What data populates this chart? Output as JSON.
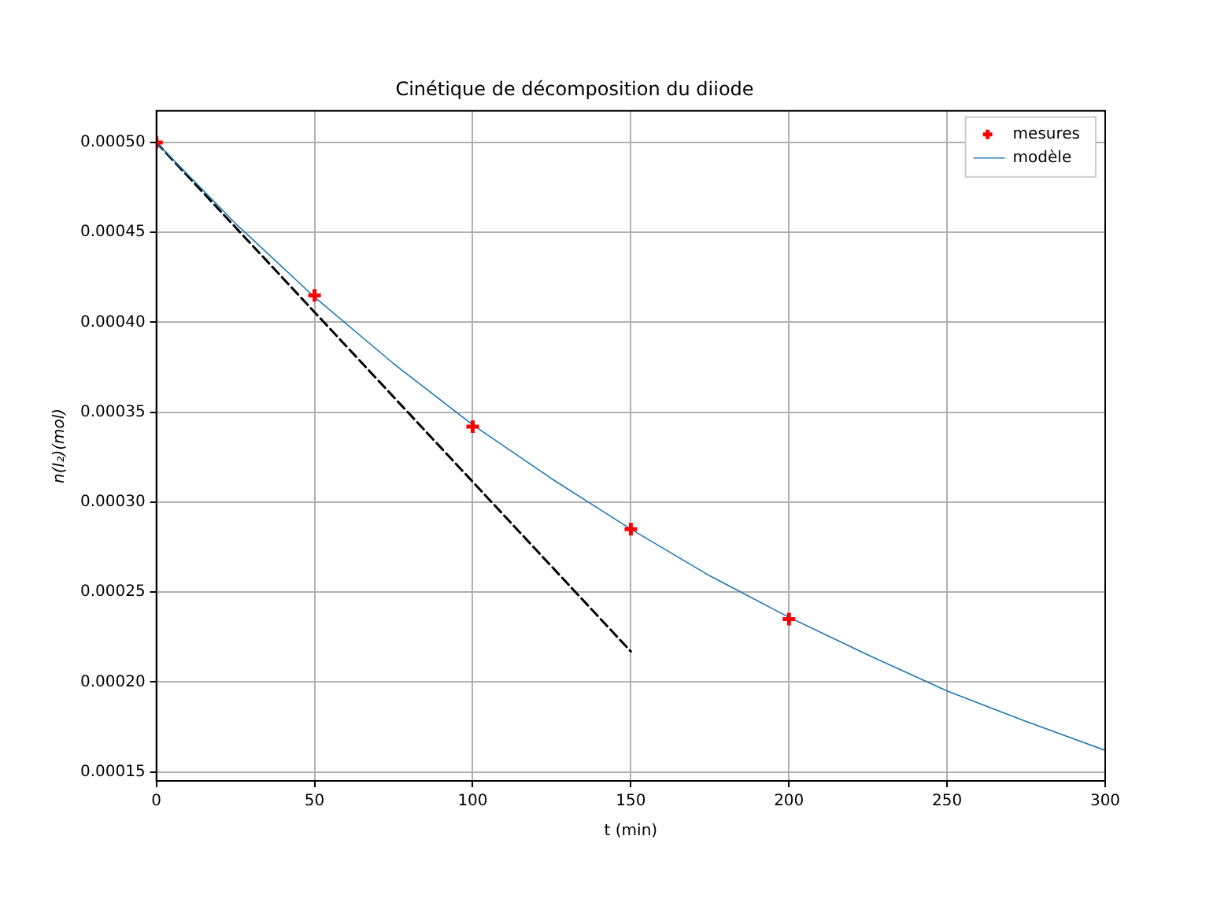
{
  "chart_data": {
    "type": "line",
    "title": "Cinétique de décomposition du diiode",
    "xlabel": "t (min)",
    "ylabel": "n(I₂)(mol)",
    "xlim": [
      0,
      300
    ],
    "xticks": [
      0,
      50,
      100,
      150,
      200,
      250,
      300
    ],
    "ylim": [
      0.000145,
      0.0005176
    ],
    "yticks": [
      {
        "value": 0.00015,
        "label": "0.00015"
      },
      {
        "value": 0.0002,
        "label": "0.00020"
      },
      {
        "value": 0.00025,
        "label": "0.00025"
      },
      {
        "value": 0.0003,
        "label": "0.00030"
      },
      {
        "value": 0.00035,
        "label": "0.00035"
      },
      {
        "value": 0.0004,
        "label": "0.00040"
      },
      {
        "value": 0.00045,
        "label": "0.00045"
      },
      {
        "value": 0.0005,
        "label": "0.00050"
      }
    ],
    "grid": true,
    "legend": "top right",
    "series": [
      {
        "name": "mesures",
        "type": "scatter",
        "color": "#ff0000",
        "marker": "cross",
        "x": [
          0,
          50,
          100,
          150,
          200
        ],
        "values": [
          0.0005,
          0.000415,
          0.000342,
          0.000285,
          0.000235
        ]
      },
      {
        "name": "modèle",
        "color": "#1f77b4",
        "marker": "none",
        "x": [
          0,
          25,
          50,
          75,
          100,
          125,
          150,
          175,
          200,
          225,
          250,
          275,
          300
        ],
        "values": [
          0.0005,
          0.000455,
          0.000414,
          0.000377,
          0.000343,
          0.000313,
          0.000285,
          0.000259,
          0.000236,
          0.000215,
          0.000195,
          0.000178,
          0.000162
        ]
      },
      {
        "color": "#000000",
        "marker": "none",
        "line_style": "dashed",
        "x": [
          0,
          150
        ],
        "values": [
          0.0005,
          0.000217
        ]
      }
    ]
  }
}
